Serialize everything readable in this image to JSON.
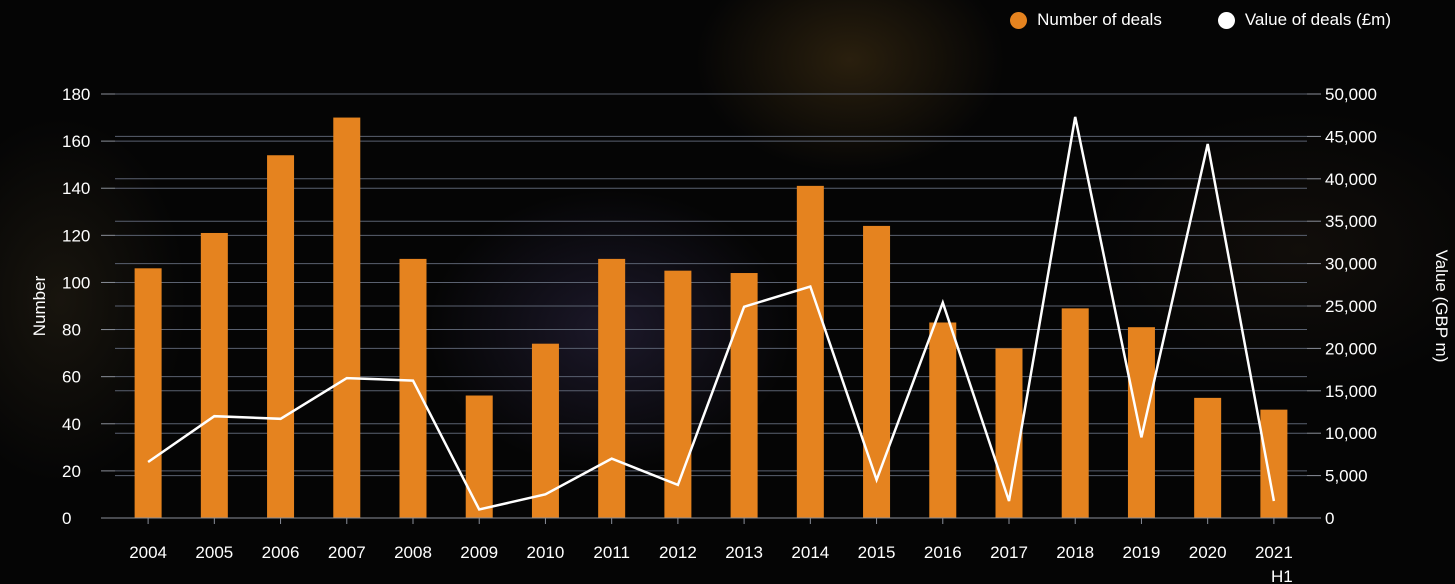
{
  "chart_data": {
    "type": "bar",
    "categories": [
      "2004",
      "2005",
      "2006",
      "2007",
      "2008",
      "2009",
      "2010",
      "2011",
      "2012",
      "2013",
      "2014",
      "2015",
      "2016",
      "2017",
      "2018",
      "2019",
      "2020",
      "2021 H1"
    ],
    "series": [
      {
        "name": "Number of deals",
        "type": "bar",
        "axis": "left",
        "color": "#e5831f",
        "values": [
          106,
          121,
          154,
          170,
          110,
          52,
          74,
          110,
          105,
          104,
          141,
          124,
          83,
          72,
          89,
          81,
          51,
          46
        ]
      },
      {
        "name": "Value of deals (£m)",
        "type": "line",
        "axis": "right",
        "color": "#ffffff",
        "values": [
          6600,
          12000,
          11700,
          16500,
          16200,
          1000,
          2800,
          7000,
          3900,
          24900,
          27300,
          4500,
          25400,
          2000,
          47300,
          9500,
          44100,
          2000
        ]
      }
    ],
    "y_left": {
      "label": "Number",
      "min": 0,
      "max": 180,
      "ticks": [
        "0",
        "20",
        "40",
        "60",
        "80",
        "100",
        "120",
        "140",
        "160",
        "180"
      ]
    },
    "y_right": {
      "label": "Value (GBP m)",
      "min": 0,
      "max": 50000,
      "ticks": [
        "0",
        "5,000",
        "10,000",
        "15,000",
        "20,000",
        "25,000",
        "30,000",
        "35,000",
        "40,000",
        "45,000",
        "50,000"
      ]
    },
    "grid": true,
    "legend_position": "top-right"
  },
  "legend": {
    "items": [
      {
        "label": "Number of deals",
        "color": "#e5831f"
      },
      {
        "label": "Value of deals (£m)",
        "color": "#ffffff"
      }
    ]
  }
}
